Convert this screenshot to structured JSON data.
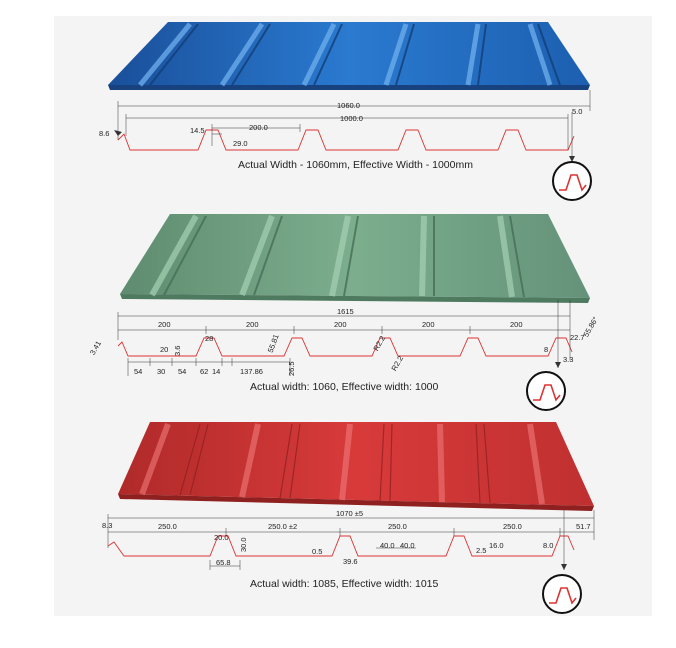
{
  "panels": [
    {
      "color": "#1f66b8",
      "caption": "Actual Width - 1060mm, Effective Width - 1000mm",
      "labels": [
        "1060.0",
        "1000.0",
        "5.0",
        "200.0",
        "14.5",
        "29.0",
        "8.6"
      ]
    },
    {
      "color": "#6f9e80",
      "caption": "Actual width: 1060, Effective width: 1000",
      "labels": [
        "1615",
        "200",
        "200",
        "200",
        "200",
        "200",
        "3.41",
        "20",
        "3.6",
        "28",
        "55.81",
        "54",
        "30",
        "54",
        "62",
        "14",
        "137.86",
        "26.5",
        "R2.2",
        "R2.2",
        "8",
        "22.7",
        "55.86°",
        "3.3"
      ]
    },
    {
      "color": "#c63030",
      "caption": "Actual width: 1085, Effective width: 1015",
      "labels": [
        "1070 ±5",
        "8.3",
        "250.0",
        "250.0 ±2",
        "250.0",
        "250.0",
        "51.7",
        "20.0",
        "30.0",
        "65.8",
        "0.5",
        "40.0",
        "40.0",
        "2.5",
        "16.0",
        "8.0",
        "39.6"
      ]
    }
  ]
}
